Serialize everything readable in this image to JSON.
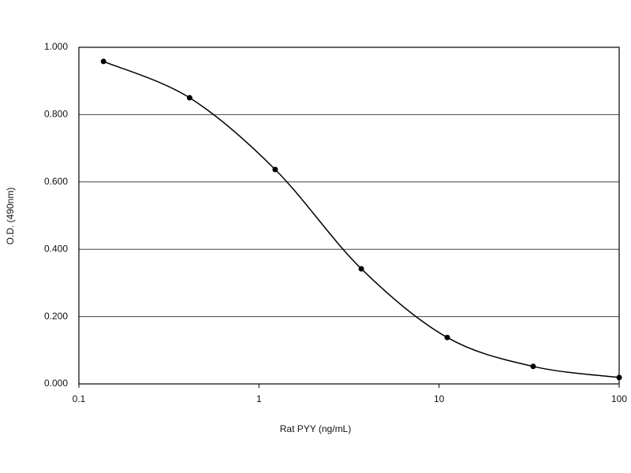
{
  "chart_data": {
    "type": "line",
    "x_label": "Rat PYY (ng/mL)",
    "y_label": "O.D. (490nm)",
    "x_log": true,
    "x": [
      0.137,
      0.412,
      1.23,
      3.7,
      11.1,
      33.3,
      100
    ],
    "series": [
      {
        "color": "#000000",
        "values": [
          0.958,
          0.85,
          0.637,
          0.342,
          0.138,
          0.052,
          0.019
        ]
      }
    ],
    "xlim": [
      0.1,
      100
    ],
    "xticks": [
      0.1,
      1,
      10,
      100
    ],
    "ylim": [
      0,
      1
    ],
    "yticks": [
      {
        "value": 0,
        "label": "0.000"
      },
      {
        "value": 0.2,
        "label": "0.200"
      },
      {
        "value": 0.4,
        "label": "0.400"
      },
      {
        "value": 0.6,
        "label": "0.600"
      },
      {
        "value": 0.8,
        "label": "0.800"
      },
      {
        "value": 1,
        "label": "1.000"
      }
    ],
    "grid": true
  }
}
